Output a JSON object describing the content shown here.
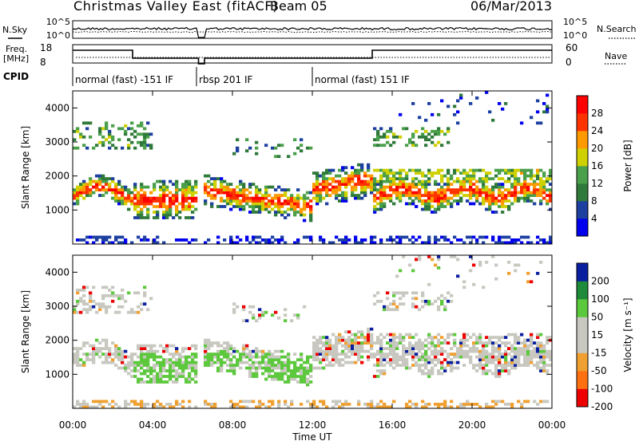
{
  "header": {
    "title": "Christmas Valley East (fitACF)",
    "beam": "Beam 05",
    "date": "06/Mar/2013"
  },
  "noise_panel": {
    "left_label": "N.Sky",
    "right_label": "N.Search",
    "ticks": [
      "10^5",
      "10^0"
    ]
  },
  "freq_panel": {
    "left_label_1": "Freq.",
    "left_label_2": "[MHz]",
    "left_ticks": [
      "18",
      "8"
    ],
    "right_label": "Nave",
    "right_ticks": [
      "60",
      "0"
    ]
  },
  "cpid": {
    "label": "CPID",
    "segments": [
      {
        "label": "normal (fast) -151 IF",
        "start": 0,
        "end": 6.2
      },
      {
        "label": "rbsp 201 IF",
        "start": 6.2,
        "end": 12.0
      },
      {
        "label": "normal (fast) 151 IF",
        "start": 12.0,
        "end": 24
      }
    ]
  },
  "chart_data": [
    {
      "type": "heatmap",
      "name": "Power",
      "ylabel": "Slant Range [km]",
      "yticks": [
        "1000",
        "2000",
        "3000",
        "4000"
      ],
      "ylim": [
        0,
        4500
      ],
      "colorbar_label": "Power [dB]",
      "colorbar_ticks": [
        "4",
        "8",
        "12",
        "16",
        "20",
        "24",
        "28"
      ],
      "colorscale": [
        "#0000ee",
        "#1c3fa0",
        "#2f7a3a",
        "#4aa04a",
        "#cfd000",
        "#ff9900",
        "#ff3300",
        "#ff0000"
      ],
      "clim": [
        0,
        32
      ]
    },
    {
      "type": "heatmap",
      "name": "Velocity",
      "ylabel": "Slant Range [km]",
      "yticks": [
        "1000",
        "2000",
        "3000",
        "4000"
      ],
      "ylim": [
        0,
        4500
      ],
      "colorbar_label": "Velocity [m s⁻¹]",
      "colorbar_ticks": [
        "200",
        "100",
        "50",
        "15",
        "-15",
        "-50",
        "-100",
        "-200"
      ],
      "colorscale": [
        "#0a1fa0",
        "#1e8a3a",
        "#5cc83c",
        "#c8c8c0",
        "#c8c8c0",
        "#f0a030",
        "#ff7010",
        "#ee0000"
      ],
      "clim": [
        -200,
        200
      ]
    }
  ],
  "x_axis": {
    "label": "Time UT",
    "ticks": [
      "00:00",
      "04:00",
      "08:00",
      "12:00",
      "16:00",
      "20:00",
      "00:00"
    ],
    "xlim": [
      0,
      24
    ]
  }
}
